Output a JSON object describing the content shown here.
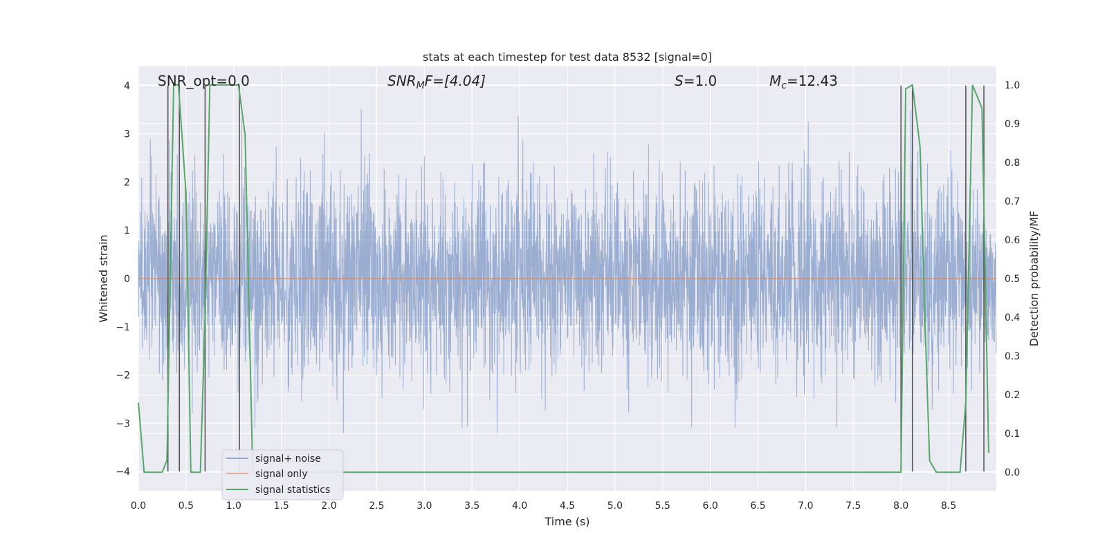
{
  "chart_data": {
    "type": "line",
    "title": "stats at each timestep for test data 8532 [signal=0]",
    "xlabel": "Time (s)",
    "ylabel": "Whitened strain",
    "ylabel_right": "Detection probability/MF",
    "xlim": [
      0.0,
      9.0
    ],
    "ylim": [
      -4.4,
      4.4
    ],
    "ylim_right": [
      -0.048,
      1.048
    ],
    "x_ticks": [
      "0.0",
      "0.5",
      "1.0",
      "1.5",
      "2.0",
      "2.5",
      "3.0",
      "3.5",
      "4.0",
      "4.5",
      "5.0",
      "5.5",
      "6.0",
      "6.5",
      "7.0",
      "7.5",
      "8.0",
      "8.5"
    ],
    "y_ticks": [
      "4",
      "3",
      "2",
      "1",
      "0",
      "−1",
      "−2",
      "−3",
      "−4"
    ],
    "y_ticks_right": [
      "1.0",
      "0.9",
      "0.8",
      "0.7",
      "0.6",
      "0.5",
      "0.4",
      "0.3",
      "0.2",
      "0.1",
      "0.0"
    ],
    "grid": true,
    "annotations": {
      "snr_opt": "SNR_opt=0.0",
      "snr_mf_a": "SNR",
      "snr_mf_sub": "M",
      "snr_mf_b": "F=[4.04]",
      "s_a": "S",
      "s_b": "=1.0",
      "mc_a": "M",
      "mc_sub": "c",
      "mc_b": "=12.43"
    },
    "legend": {
      "placement": "lower-left",
      "entries": [
        "signal+ noise",
        "signal only",
        "signal statistics"
      ]
    },
    "series": [
      {
        "name": "signal+ noise",
        "color": "#4c72b0",
        "style": "dense noise, amplitude up to about ±4",
        "axis": "left"
      },
      {
        "name": "signal only",
        "color": "#dd8452",
        "y_constant": 0,
        "axis": "left"
      },
      {
        "name": "signal statistics",
        "color": "#55a868",
        "axis": "right",
        "x": [
          0.0,
          0.06,
          0.1,
          0.25,
          0.3,
          0.37,
          0.42,
          0.5,
          0.55,
          0.65,
          0.7,
          0.75,
          0.8,
          1.05,
          1.12,
          1.2,
          1.3,
          7.95,
          8.0,
          8.05,
          8.12,
          8.2,
          8.25,
          8.3,
          8.37,
          8.5,
          8.62,
          8.68,
          8.75,
          8.85,
          8.92
        ],
        "y": [
          0.18,
          0.0,
          0.0,
          0.0,
          0.03,
          1.0,
          1.0,
          0.72,
          0.0,
          0.0,
          0.4,
          1.0,
          1.0,
          1.0,
          0.87,
          0.0,
          0.0,
          0.0,
          0.0,
          0.99,
          1.0,
          0.84,
          0.4,
          0.03,
          0.0,
          0.0,
          0.0,
          0.18,
          1.0,
          0.94,
          0.05
        ]
      }
    ],
    "vertical_markers": {
      "color": "#555555",
      "x": [
        0.31,
        0.43,
        0.7,
        1.06,
        8.0,
        8.12,
        8.68,
        8.87
      ]
    },
    "colors": {
      "plot_bg": "#eaeaf2",
      "grid": "#ffffff",
      "noise": "#4c72b0",
      "signal_only": "#dd8452",
      "stats": "#55a868",
      "markers": "#555555"
    }
  }
}
